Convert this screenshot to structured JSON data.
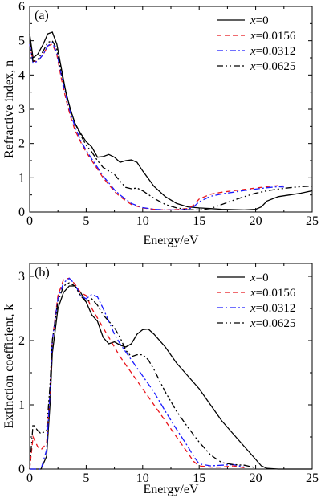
{
  "chart_data": [
    {
      "type": "line",
      "panel_label": "(a)",
      "xlabel": "Energy/eV",
      "ylabel": "Refractive index, n",
      "xlim": [
        0,
        25
      ],
      "ylim": [
        0,
        6
      ],
      "xticks": [
        "0",
        "5",
        "10",
        "15",
        "20",
        "25"
      ],
      "yticks": [
        "0",
        "1",
        "2",
        "3",
        "4",
        "5",
        "6"
      ],
      "legend_position": "top-right",
      "series": [
        {
          "name": "x=0",
          "var": "x",
          "value": "0",
          "color": "#000000",
          "dash": "solid",
          "x": [
            0,
            0.3,
            0.7,
            1.2,
            1.6,
            2.0,
            2.4,
            2.8,
            3.2,
            3.6,
            4.0,
            4.5,
            5.0,
            5.5,
            6.0,
            6.5,
            7.0,
            7.5,
            8.0,
            8.5,
            9.0,
            9.5,
            10.0,
            11.0,
            12.0,
            13.0,
            14.0,
            15.0,
            16.0,
            17.0,
            18.0,
            19.0,
            20.0,
            20.5,
            21.0,
            22.0,
            23.0,
            24.0,
            25.0
          ],
          "y": [
            5.2,
            4.5,
            4.6,
            4.9,
            5.2,
            5.25,
            4.9,
            4.2,
            3.5,
            3.0,
            2.6,
            2.3,
            2.05,
            1.9,
            1.6,
            1.62,
            1.68,
            1.6,
            1.45,
            1.5,
            1.52,
            1.45,
            1.2,
            0.75,
            0.45,
            0.25,
            0.15,
            0.12,
            0.1,
            0.08,
            0.07,
            0.06,
            0.08,
            0.15,
            0.32,
            0.45,
            0.5,
            0.55,
            0.62
          ]
        },
        {
          "name": "x=0.0156",
          "var": "x",
          "value": "0.0156",
          "color": "#e8141b",
          "dash": "6,4",
          "x": [
            0,
            0.3,
            0.7,
            1.2,
            1.6,
            2.0,
            2.4,
            2.8,
            3.2,
            3.6,
            4.0,
            4.5,
            5.0,
            5.5,
            6.0,
            6.5,
            7.0,
            7.5,
            8.0,
            9.0,
            10.0,
            11.0,
            12.0,
            13.0,
            14.0,
            14.5,
            15.0,
            16.0,
            17.0,
            18.0,
            19.0,
            20.0,
            21.0,
            22.0,
            22.5
          ],
          "y": [
            4.9,
            4.4,
            4.4,
            4.6,
            4.85,
            4.9,
            4.6,
            3.9,
            3.3,
            2.8,
            2.4,
            2.05,
            1.75,
            1.5,
            1.25,
            1.0,
            0.8,
            0.6,
            0.45,
            0.22,
            0.12,
            0.08,
            0.06,
            0.07,
            0.1,
            0.2,
            0.38,
            0.52,
            0.58,
            0.62,
            0.66,
            0.7,
            0.74,
            0.77,
            0.76
          ]
        },
        {
          "name": "x=0.0312",
          "var": "x",
          "value": "0.0312",
          "color": "#1a1aff",
          "dash": "8,3,2,3",
          "x": [
            0,
            0.3,
            0.7,
            1.2,
            1.6,
            2.0,
            2.4,
            2.8,
            3.2,
            3.6,
            4.0,
            4.5,
            5.0,
            5.5,
            6.0,
            6.5,
            7.0,
            7.5,
            8.0,
            9.0,
            10.0,
            11.0,
            12.0,
            13.0,
            14.0,
            14.5,
            15.0,
            16.0,
            17.0,
            18.0,
            19.0,
            20.0,
            21.0,
            22.0,
            22.5
          ],
          "y": [
            4.9,
            4.35,
            4.4,
            4.6,
            4.85,
            4.95,
            4.65,
            4.0,
            3.4,
            2.9,
            2.5,
            2.1,
            1.8,
            1.55,
            1.3,
            1.05,
            0.85,
            0.65,
            0.5,
            0.25,
            0.13,
            0.08,
            0.06,
            0.06,
            0.08,
            0.15,
            0.3,
            0.46,
            0.53,
            0.58,
            0.63,
            0.67,
            0.71,
            0.74,
            0.73
          ]
        },
        {
          "name": "x=0.0625",
          "var": "x",
          "value": "0.0625",
          "color": "#000000",
          "dash": "8,3,2,3,2,3",
          "x": [
            0,
            0.3,
            0.7,
            1.2,
            1.6,
            2.0,
            2.4,
            2.8,
            3.2,
            3.6,
            4.0,
            4.5,
            5.0,
            5.5,
            6.0,
            6.5,
            7.0,
            7.5,
            8.0,
            8.5,
            9.0,
            9.5,
            10.0,
            11.0,
            12.0,
            13.0,
            14.0,
            15.0,
            16.0,
            17.0,
            18.0,
            19.0,
            20.0,
            21.0,
            22.0,
            23.0,
            24.0,
            25.0
          ],
          "y": [
            5.0,
            4.4,
            4.45,
            4.7,
            4.95,
            5.0,
            4.75,
            4.1,
            3.5,
            3.0,
            2.6,
            2.25,
            1.95,
            1.75,
            1.5,
            1.3,
            1.2,
            1.1,
            0.9,
            0.72,
            0.68,
            0.7,
            0.62,
            0.4,
            0.22,
            0.12,
            0.07,
            0.06,
            0.1,
            0.22,
            0.34,
            0.45,
            0.55,
            0.62,
            0.67,
            0.71,
            0.74,
            0.76
          ]
        }
      ]
    },
    {
      "type": "line",
      "panel_label": "(b)",
      "xlabel": "Energy/eV",
      "ylabel": "Extinction coefficient, k",
      "xlim": [
        0,
        25
      ],
      "ylim": [
        0,
        3.2
      ],
      "xticks": [
        "0",
        "5",
        "10",
        "15",
        "20",
        "25"
      ],
      "yticks": [
        "0",
        "1",
        "2",
        "3"
      ],
      "legend_position": "top-right",
      "series": [
        {
          "name": "x=0",
          "var": "x",
          "value": "0",
          "color": "#000000",
          "dash": "solid",
          "x": [
            0,
            1.0,
            1.5,
            1.8,
            2.0,
            2.5,
            3.0,
            3.5,
            4.0,
            4.5,
            5.0,
            5.5,
            6.0,
            6.5,
            7.0,
            7.5,
            8.0,
            8.5,
            9.0,
            9.5,
            10.0,
            10.5,
            11.0,
            12.0,
            13.0,
            14.0,
            15.0,
            16.0,
            17.0,
            18.0,
            19.0,
            19.5,
            20.0,
            20.5,
            21.0,
            22.0,
            25.0
          ],
          "y": [
            0,
            0,
            0.2,
            1.0,
            1.8,
            2.5,
            2.75,
            2.85,
            2.85,
            2.75,
            2.6,
            2.4,
            2.3,
            2.05,
            1.95,
            1.98,
            1.93,
            1.9,
            1.95,
            2.1,
            2.17,
            2.18,
            2.1,
            1.9,
            1.65,
            1.45,
            1.25,
            1.0,
            0.75,
            0.55,
            0.35,
            0.25,
            0.15,
            0.05,
            0.01,
            0,
            0
          ]
        },
        {
          "name": "x=0.0156",
          "var": "x",
          "value": "0.0156",
          "color": "#e8141b",
          "dash": "6,4",
          "x": [
            0,
            0.3,
            0.7,
            1.0,
            1.5,
            1.8,
            2.0,
            2.5,
            3.0,
            3.5,
            4.0,
            4.5,
            5.0,
            5.5,
            6.0,
            6.5,
            7.0,
            7.5,
            8.0,
            9.0,
            10.0,
            11.0,
            12.0,
            13.0,
            14.0,
            14.5,
            15.0,
            16.0,
            17.0,
            18.0,
            19.0
          ],
          "y": [
            0,
            0.5,
            0.35,
            0.3,
            0.4,
            1.2,
            2.0,
            2.7,
            2.95,
            2.97,
            2.88,
            2.75,
            2.7,
            2.5,
            2.35,
            2.2,
            2.05,
            1.9,
            1.75,
            1.5,
            1.25,
            1.0,
            0.75,
            0.5,
            0.25,
            0.12,
            0.05,
            0.03,
            0.03,
            0.05,
            0.02
          ]
        },
        {
          "name": "x=0.0312",
          "var": "x",
          "value": "0.0312",
          "color": "#1a1aff",
          "dash": "8,3,2,3",
          "x": [
            0,
            1.0,
            1.5,
            1.8,
            2.0,
            2.5,
            3.0,
            3.5,
            4.0,
            4.5,
            5.0,
            5.5,
            6.0,
            6.5,
            7.0,
            7.5,
            8.0,
            9.0,
            10.0,
            11.0,
            12.0,
            13.0,
            14.0,
            14.5,
            15.0,
            16.0,
            17.0,
            18.0,
            19.0
          ],
          "y": [
            0,
            0,
            0.3,
            1.2,
            2.0,
            2.65,
            2.9,
            2.97,
            2.88,
            2.7,
            2.65,
            2.72,
            2.68,
            2.5,
            2.3,
            2.1,
            1.95,
            1.7,
            1.45,
            1.2,
            0.9,
            0.62,
            0.35,
            0.2,
            0.08,
            0.05,
            0.06,
            0.07,
            0.03
          ]
        },
        {
          "name": "x=0.0625",
          "var": "x",
          "value": "0.0625",
          "color": "#000000",
          "dash": "8,3,2,3,2,3",
          "x": [
            0,
            0.3,
            0.7,
            1.0,
            1.5,
            1.8,
            2.0,
            2.5,
            3.0,
            3.5,
            4.0,
            4.5,
            5.0,
            5.5,
            6.0,
            6.5,
            7.0,
            7.5,
            8.0,
            8.5,
            9.0,
            9.5,
            10.0,
            10.5,
            11.0,
            12.0,
            13.0,
            14.0,
            15.0,
            16.0,
            17.0,
            18.0,
            19.0,
            20.0
          ],
          "y": [
            0,
            0.7,
            0.6,
            0.55,
            0.6,
            1.3,
            2.0,
            2.6,
            2.85,
            2.9,
            2.85,
            2.7,
            2.6,
            2.65,
            2.55,
            2.4,
            2.3,
            2.2,
            2.05,
            1.85,
            1.75,
            1.78,
            1.78,
            1.7,
            1.55,
            1.2,
            0.9,
            0.65,
            0.42,
            0.22,
            0.1,
            0.07,
            0.06,
            0.02
          ]
        }
      ]
    }
  ]
}
